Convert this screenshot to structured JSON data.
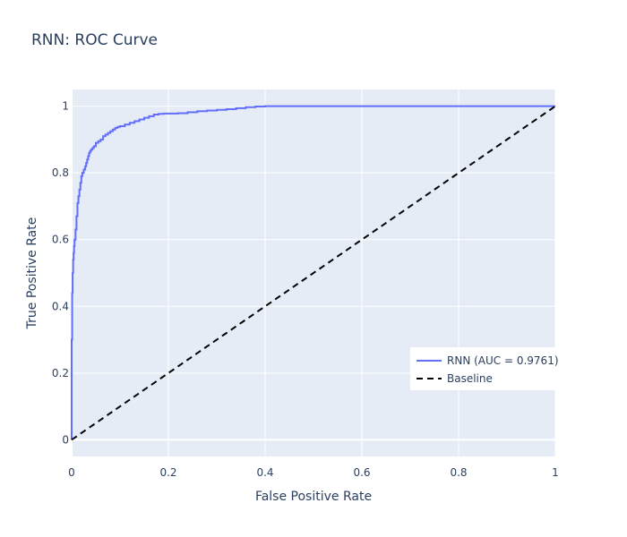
{
  "chart_data": {
    "type": "line",
    "title": "RNN: ROC Curve",
    "xlabel": "False Positive Rate",
    "ylabel": "True Positive Rate",
    "xlim": [
      0,
      1
    ],
    "ylim": [
      -0.05,
      1.05
    ],
    "x_ticks": [
      "0",
      "0.2",
      "0.4",
      "0.6",
      "0.8",
      "1"
    ],
    "y_ticks": [
      "0",
      "0.2",
      "0.4",
      "0.6",
      "0.8",
      "1"
    ],
    "grid": true,
    "legend_position": "right",
    "series": [
      {
        "name": "RNN (AUC = 0.9761)",
        "color": "#636efa",
        "dash": "solid",
        "x": [
          0,
          0,
          0.001,
          0.002,
          0.003,
          0.004,
          0.005,
          0.006,
          0.008,
          0.01,
          0.012,
          0.014,
          0.016,
          0.018,
          0.02,
          0.022,
          0.025,
          0.028,
          0.03,
          0.032,
          0.034,
          0.036,
          0.038,
          0.04,
          0.043,
          0.046,
          0.05,
          0.055,
          0.06,
          0.065,
          0.07,
          0.075,
          0.08,
          0.085,
          0.09,
          0.095,
          0.1,
          0.11,
          0.12,
          0.13,
          0.14,
          0.15,
          0.16,
          0.17,
          0.18,
          0.19,
          0.2,
          0.22,
          0.24,
          0.26,
          0.28,
          0.3,
          0.32,
          0.34,
          0.36,
          0.38,
          0.4,
          0.5,
          0.6,
          0.7,
          0.8,
          0.9,
          1.0
        ],
        "y": [
          0,
          0.3,
          0.44,
          0.5,
          0.54,
          0.56,
          0.58,
          0.6,
          0.63,
          0.67,
          0.71,
          0.73,
          0.75,
          0.77,
          0.79,
          0.8,
          0.81,
          0.82,
          0.83,
          0.84,
          0.85,
          0.86,
          0.865,
          0.87,
          0.875,
          0.88,
          0.89,
          0.895,
          0.9,
          0.91,
          0.915,
          0.92,
          0.925,
          0.93,
          0.935,
          0.938,
          0.94,
          0.945,
          0.95,
          0.955,
          0.96,
          0.965,
          0.97,
          0.975,
          0.977,
          0.978,
          0.978,
          0.979,
          0.982,
          0.985,
          0.987,
          0.989,
          0.991,
          0.994,
          0.997,
          0.999,
          1.0,
          1.0,
          1.0,
          1.0,
          1.0,
          1.0,
          1.0
        ]
      },
      {
        "name": "Baseline",
        "color": "#000000",
        "dash": "dashed",
        "x": [
          0,
          1
        ],
        "y": [
          0,
          1
        ]
      }
    ]
  }
}
